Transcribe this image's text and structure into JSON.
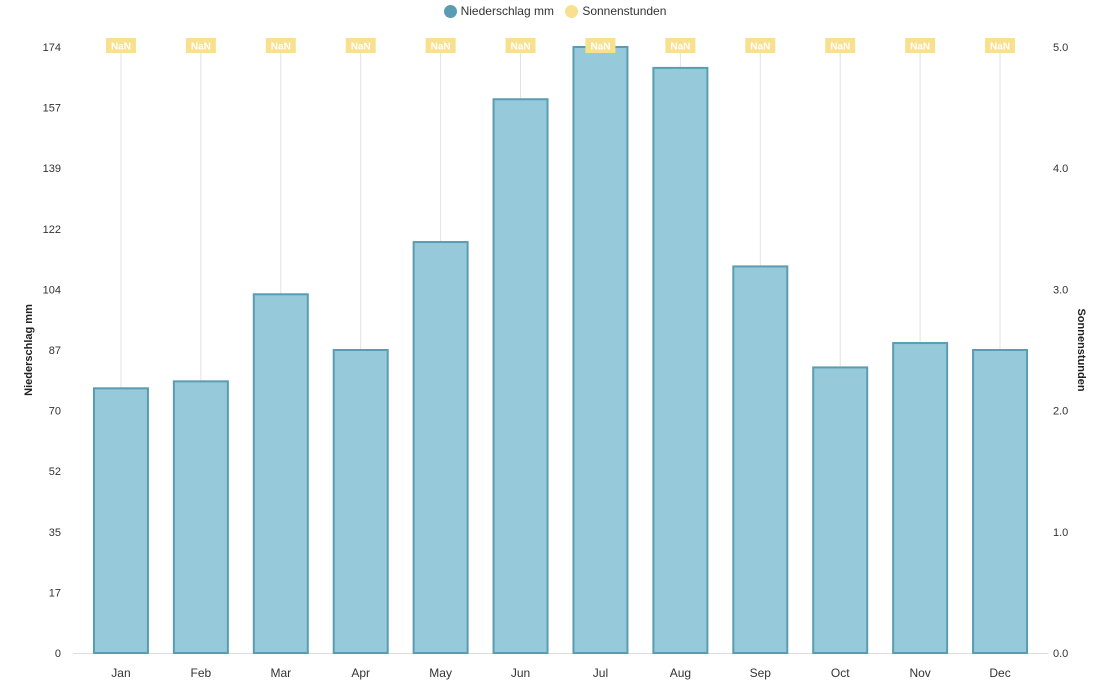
{
  "chart_data": {
    "type": "bar",
    "categories": [
      "Jan",
      "Feb",
      "Mar",
      "Apr",
      "May",
      "Jun",
      "Jul",
      "Aug",
      "Sep",
      "Oct",
      "Nov",
      "Dec"
    ],
    "series": [
      {
        "name": "Niederschlag mm",
        "type": "bar",
        "axis": "left",
        "color": "#96c9d9",
        "border": "#5a9db3",
        "values": [
          76,
          78,
          103,
          87,
          118,
          159,
          174,
          168,
          111,
          82,
          89,
          87
        ]
      },
      {
        "name": "Sonnenstunden",
        "type": "line",
        "axis": "right",
        "color": "#f8e08e",
        "values": [
          null,
          null,
          null,
          null,
          null,
          null,
          null,
          null,
          null,
          null,
          null,
          null
        ],
        "labels": [
          "NaN",
          "NaN",
          "NaN",
          "NaN",
          "NaN",
          "NaN",
          "NaN",
          "NaN",
          "NaN",
          "NaN",
          "NaN",
          "NaN"
        ]
      }
    ],
    "ylabel_left": "Niederschlag mm",
    "ylabel_right": "Sonnenstunden",
    "ylim_left": [
      0,
      174
    ],
    "ylim_right": [
      0,
      5
    ],
    "yticks_left": [
      "0",
      "17",
      "35",
      "52",
      "70",
      "87",
      "104",
      "122",
      "139",
      "157",
      "174"
    ],
    "yticks_right": [
      "0.0",
      "1.0",
      "2.0",
      "3.0",
      "4.0",
      "5.0"
    ],
    "legend_position": "top-center",
    "grid": "vertical"
  }
}
